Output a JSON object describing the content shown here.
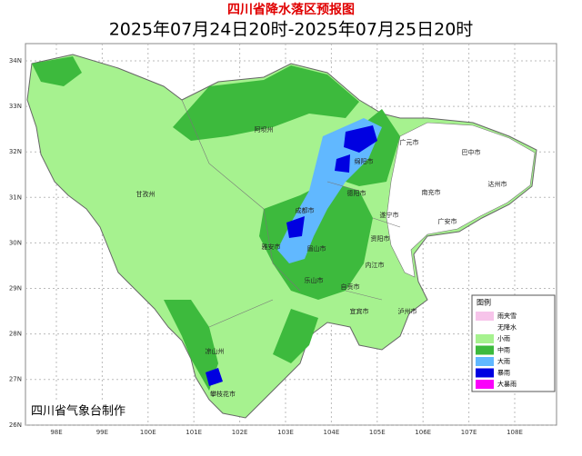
{
  "title": "四川省降水落区预报图",
  "subtitle": "2025年07月24日20时-2025年07月25日20时",
  "lat_labels": [
    "34N",
    "33N",
    "32N",
    "31N",
    "30N",
    "29N",
    "28N",
    "27N",
    "26N"
  ],
  "lon_labels": [
    "98E",
    "99E",
    "100E",
    "101E",
    "102E",
    "103E",
    "104E",
    "105E",
    "106E",
    "107E",
    "108E"
  ],
  "places": [
    "阿坝州",
    "广元市",
    "巴中市",
    "绵阳市",
    "甘孜州",
    "德阳市",
    "南充市",
    "达州市",
    "成都市",
    "遂宁市",
    "广安市",
    "雅安市",
    "眉山市",
    "资阳市",
    "内江市",
    "乐山市",
    "自贡市",
    "泸州市",
    "宜宾市",
    "凉山州",
    "攀枝花市"
  ],
  "legend": {
    "title": "图例",
    "items": [
      {
        "label": "雨夹雪",
        "color": "#f7c4ea"
      },
      {
        "label": "无降水",
        "color": "#ffffff"
      },
      {
        "label": "小雨",
        "color": "#a6f28f"
      },
      {
        "label": "中雨",
        "color": "#3dba3d"
      },
      {
        "label": "大雨",
        "color": "#61b8ff"
      },
      {
        "label": "暴雨",
        "color": "#0000e1"
      },
      {
        "label": "大暴雨",
        "color": "#fa00fa"
      }
    ]
  },
  "credit": "四川省气象台制作"
}
